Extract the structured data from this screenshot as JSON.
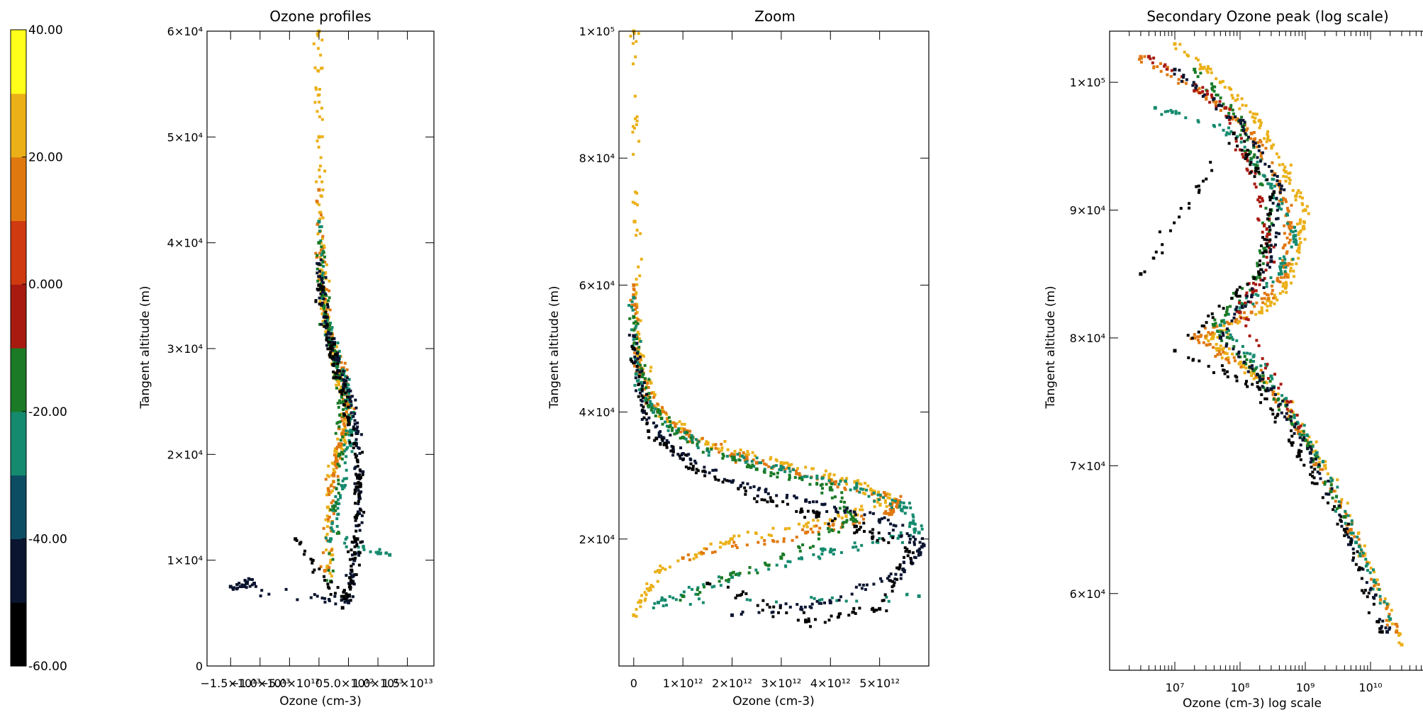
{
  "colorbar": {
    "labels": [
      "40.00",
      "20.00",
      "0.000",
      "-20.00",
      "-40.00",
      "-60.00"
    ],
    "values": [
      40,
      20,
      0,
      -20,
      -40,
      -60
    ],
    "range": [
      -60,
      40
    ],
    "colors": [
      "#000000",
      "#0b1530",
      "#0c4d63",
      "#158a6e",
      "#1a7a26",
      "#a81a10",
      "#cf3a10",
      "#e07810",
      "#ebb018",
      "#ffff1a"
    ]
  },
  "chart_data": [
    {
      "type": "scatter",
      "title": "Ozone profiles",
      "xlabel": "Ozone (cm-3)",
      "ylabel": "Tangent altitude (m)",
      "xlim": [
        -19000000000000.0,
        19500000000000.0
      ],
      "ylim": [
        0,
        60000
      ],
      "x_ticks": [
        -15000000000000.0,
        -10000000000000.0,
        -5000000000000.0,
        0,
        5000000000000.0,
        10000000000000.0,
        15000000000000.0
      ],
      "x_tick_labels": [
        "−1.5×10¹³",
        "−1.0×10¹³",
        "−5.0×10¹²",
        "0",
        "5.0×10¹²",
        "1.0×10¹³",
        "1.5×10¹³"
      ],
      "y_ticks": [
        0,
        10000,
        20000,
        30000,
        40000,
        50000,
        60000
      ],
      "y_tick_labels": [
        "0",
        "1×10⁴",
        "2×10⁴",
        "3×10⁴",
        "4×10⁴",
        "5×10⁴",
        "6×10⁴"
      ],
      "series": [
        {
          "color": "#ebb018",
          "x": [
            0,
            20000000000.0,
            300000000000.0,
            800000000000.0,
            1500000000000.0,
            2500000000000.0,
            3500000000000.0,
            4500000000000.0,
            4600000000000.0,
            3000000000000.0,
            1500000000000.0,
            2000000000000.0
          ],
          "y": [
            60000,
            50000,
            40000,
            35000,
            32000,
            29000,
            27000,
            25000,
            22000,
            20000,
            15000,
            8000
          ]
        },
        {
          "color": "#e07810",
          "x": [
            0,
            500000000000.0,
            2000000000000.0,
            4000000000000.0,
            5000000000000.0,
            4000000000000.0,
            2500000000000.0,
            1000000000000.0
          ],
          "y": [
            45000,
            36000,
            31000,
            28000,
            25000,
            22000,
            18000,
            9000
          ]
        },
        {
          "color": "#158a6e",
          "x": [
            0,
            1000000000000.0,
            3000000000000.0,
            4800000000000.0,
            5500000000000.0,
            4000000000000.0,
            2000000000000.0,
            12000000000000.0
          ],
          "y": [
            42000,
            33000,
            29000,
            26000,
            22000,
            17000,
            12000,
            10500
          ]
        },
        {
          "color": "#1a7a26",
          "x": [
            0,
            800000000000.0,
            2200000000000.0,
            3800000000000.0,
            3500000000000.0,
            2000000000000.0
          ],
          "y": [
            40000,
            34000,
            30000,
            26000,
            20000,
            8000
          ]
        },
        {
          "color": "#0b1530",
          "x": [
            0,
            1000000000000.0,
            3000000000000.0,
            5000000000000.0,
            6500000000000.0,
            7000000000000.0,
            6000000000000.0,
            5000000000000.0,
            -15000000000000.0,
            -11000000000000.0
          ],
          "y": [
            38000,
            33000,
            29000,
            26000,
            22000,
            17000,
            10000,
            6000,
            7500,
            7800
          ]
        },
        {
          "color": "#000000",
          "x": [
            0,
            2000000000000.0,
            4000000000000.0,
            6000000000000.0,
            7000000000000.0,
            6500000000000.0,
            5500000000000.0,
            4000000000000.0,
            -4000000000000.0
          ],
          "y": [
            36000,
            30000,
            26000,
            21000,
            17000,
            12000,
            8000,
            5500,
            12000
          ]
        }
      ]
    },
    {
      "type": "scatter",
      "title": "Zoom",
      "xlabel": "Ozone (cm-3)",
      "ylabel": "Tangent altitude (m)",
      "xlim": [
        -300000000000.0,
        6000000000000.0
      ],
      "ylim": [
        0,
        100000
      ],
      "x_ticks": [
        0,
        1000000000000.0,
        2000000000000.0,
        3000000000000.0,
        4000000000000.0,
        5000000000000.0
      ],
      "x_tick_labels": [
        "0",
        "1×10¹²",
        "2×10¹²",
        "3×10¹²",
        "4×10¹²",
        "5×10¹²"
      ],
      "y_ticks": [
        20000,
        40000,
        60000,
        80000,
        100000
      ],
      "y_tick_labels": [
        "2×10⁴",
        "4×10⁴",
        "6×10⁴",
        "8×10⁴",
        "1×10⁵"
      ],
      "series": [
        {
          "color": "#ebb018",
          "x": [
            0,
            20000000000.0,
            100000000000.0,
            500000000000.0,
            1500000000000.0,
            3000000000000.0,
            4500000000000.0,
            5300000000000.0,
            4000000000000.0,
            2000000000000.0,
            500000000000.0,
            0
          ],
          "y": [
            100000,
            70000,
            50000,
            40000,
            35000,
            32000,
            29000,
            26000,
            23000,
            20000,
            15000,
            8000
          ]
        },
        {
          "color": "#e07810",
          "x": [
            0,
            60000000000.0,
            300000000000.0,
            1200000000000.0,
            2500000000000.0,
            4000000000000.0,
            5400000000000.0,
            5200000000000.0,
            3500000000000.0,
            1000000000000.0
          ],
          "y": [
            60000,
            48000,
            42000,
            36000,
            32000,
            29000,
            26000,
            24000,
            21000,
            17000
          ]
        },
        {
          "color": "#158a6e",
          "x": [
            0,
            50000000000.0,
            400000000000.0,
            1500000000000.0,
            3000000000000.0,
            4500000000000.0,
            5500000000000.0,
            5800000000000.0,
            4000000000000.0,
            2000000000000.0,
            500000000000.0,
            5800000000000.0
          ],
          "y": [
            58000,
            46000,
            40000,
            34000,
            31000,
            28000,
            25000,
            21000,
            18000,
            14000,
            10000,
            11000
          ]
        },
        {
          "color": "#1a7a26",
          "x": [
            0,
            300000000000.0,
            1000000000000.0,
            2500000000000.0,
            4000000000000.0,
            4500000000000.0,
            3000000000000.0,
            1000000000000.0
          ],
          "y": [
            55000,
            41000,
            36000,
            31000,
            28000,
            23000,
            17000,
            11000
          ]
        },
        {
          "color": "#0b1530",
          "x": [
            0,
            200000000000.0,
            800000000000.0,
            2000000000000.0,
            3500000000000.0,
            5000000000000.0,
            5900000000000.0,
            5500000000000.0,
            4000000000000.0,
            2000000000000.0
          ],
          "y": [
            52000,
            40000,
            34000,
            29000,
            26000,
            23000,
            19000,
            15000,
            10000,
            8000
          ]
        },
        {
          "color": "#000000",
          "x": [
            0,
            300000000000.0,
            1200000000000.0,
            2800000000000.0,
            4500000000000.0,
            5600000000000.0,
            5000000000000.0,
            3500000000000.0,
            1500000000000.0
          ],
          "y": [
            50000,
            37000,
            31000,
            26000,
            22000,
            18000,
            9000,
            7000,
            13000
          ]
        }
      ]
    },
    {
      "type": "scatter",
      "title": "Secondary Ozone peak (log scale)",
      "xlabel": "Ozone (cm-3) log scale",
      "ylabel": "Tangent altitude (m)",
      "x_scale": "log",
      "xlim": [
        1000000.0,
        100000000000.0
      ],
      "ylim": [
        54000,
        104000
      ],
      "x_ticks": [
        10000000.0,
        100000000.0,
        1000000000.0,
        10000000000.0
      ],
      "x_tick_labels": [
        "10⁷",
        "10⁸",
        "10⁹",
        "10¹⁰"
      ],
      "y_ticks": [
        60000,
        70000,
        80000,
        90000,
        100000
      ],
      "y_tick_labels": [
        "6×10⁴",
        "7×10⁴",
        "8×10⁴",
        "9×10⁴",
        "1×10⁵"
      ],
      "series": [
        {
          "color": "#ebb018",
          "x": [
            10000000.0,
            50000000.0,
            200000000.0,
            500000000.0,
            1000000000.0,
            800000000.0,
            500000000.0,
            200000000.0,
            30000000.0,
            100000000.0,
            500000000.0,
            2000000000.0,
            8000000000.0,
            30000000000.0
          ],
          "y": [
            103000,
            100000,
            97000,
            93000,
            90000,
            87000,
            84000,
            82000,
            80000,
            78000,
            75000,
            70000,
            63000,
            56000
          ]
        },
        {
          "color": "#e07810",
          "x": [
            3000000.0,
            30000000.0,
            150000000.0,
            400000000.0,
            600000000.0,
            500000000.0,
            150000000.0,
            20000000.0,
            200000000.0,
            1000000000.0,
            5000000000.0,
            25000000000.0
          ],
          "y": [
            102000,
            99000,
            96000,
            92000,
            89000,
            85000,
            82000,
            80000,
            77000,
            72000,
            65000,
            57000
          ]
        },
        {
          "color": "#158a6e",
          "x": [
            5000000.0,
            80000000.0,
            300000000.0,
            700000000.0,
            400000000.0,
            50000000.0,
            300000000.0,
            1500000000.0,
            6000000000.0,
            20000000000.0
          ],
          "y": [
            98000,
            96000,
            92000,
            88000,
            85000,
            81000,
            77000,
            71000,
            64000,
            58000
          ]
        },
        {
          "color": "#1a7a26",
          "x": [
            20000000.0,
            100000000.0,
            300000000.0,
            200000000.0,
            40000000.0,
            200000000.0,
            1000000000.0,
            4000000000.0
          ],
          "y": [
            101000,
            97000,
            90000,
            85000,
            81000,
            77000,
            72000,
            66000
          ]
        },
        {
          "color": "#a81a10",
          "x": [
            4000000.0,
            60000000.0,
            200000000.0,
            300000000.0,
            100000000.0,
            800000000.0
          ],
          "y": [
            102000,
            98000,
            91000,
            86000,
            82000,
            73000
          ]
        },
        {
          "color": "#0b1530",
          "x": [
            10000000.0,
            100000000.0,
            400000000.0,
            300000000.0,
            50000000.0,
            300000000.0,
            1200000000.0,
            5000000000.0,
            18000000000.0
          ],
          "y": [
            101000,
            97000,
            92000,
            86000,
            80000,
            76000,
            71000,
            64000,
            57000
          ]
        },
        {
          "color": "#000000",
          "x": [
            3000000.0,
            80000000.0,
            300000000.0,
            200000000.0,
            10000000.0,
            200000000.0,
            800000000.0,
            4000000000.0,
            15000000000.0
          ],
          "y": [
            85000,
            96000,
            91000,
            85000,
            79000,
            76000,
            71000,
            65000,
            57000
          ]
        }
      ]
    }
  ]
}
